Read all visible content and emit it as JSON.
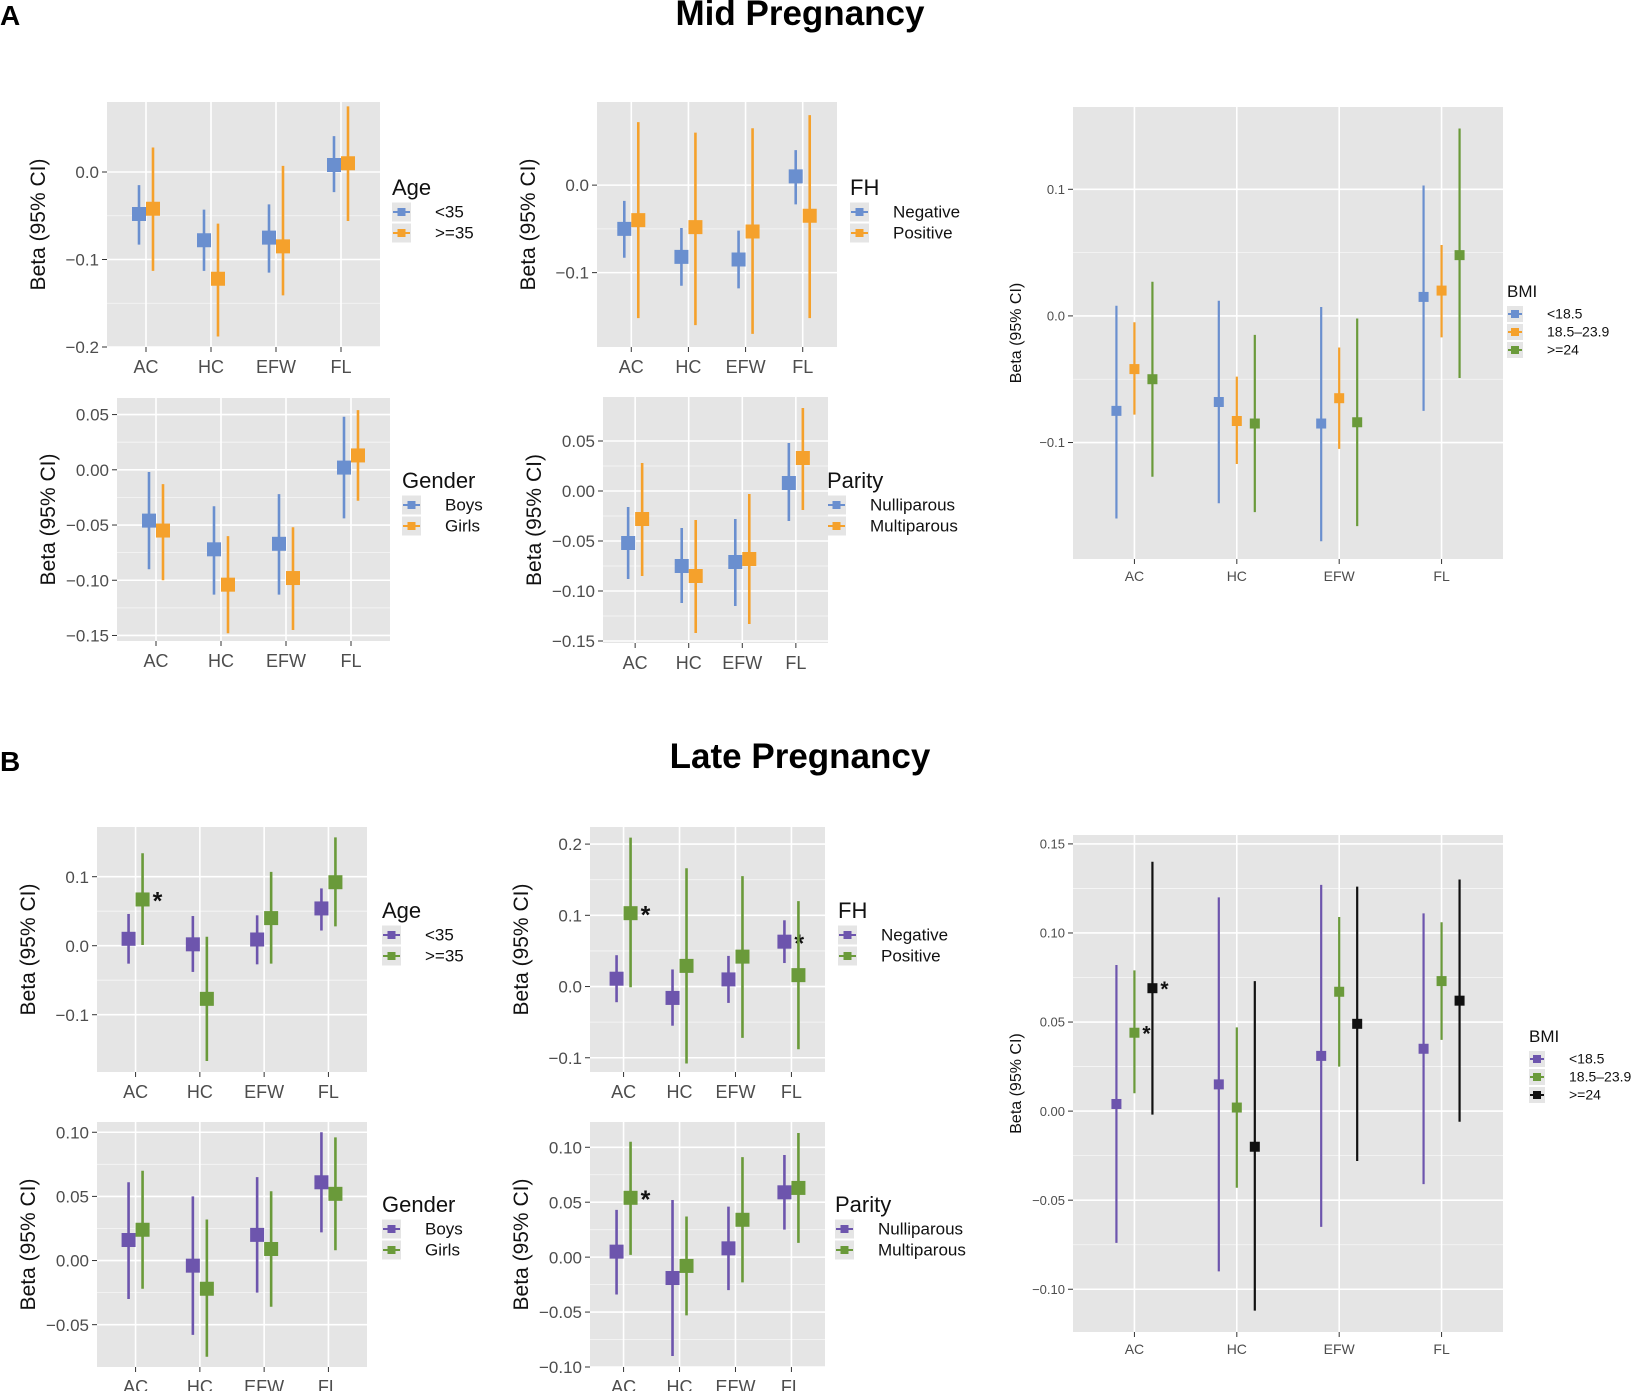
{
  "panel_a": {
    "letter": "A",
    "title": "Mid Pregnancy"
  },
  "panel_b": {
    "letter": "B",
    "title": "Late Pregnancy"
  },
  "colors": {
    "blue": "#6a8fcf",
    "orange": "#f5a12c",
    "green": "#6a9a3a",
    "purple": "#6d55ad",
    "black": "#111111",
    "panel": "#e5e5e5",
    "grid": "#ffffff"
  },
  "chart_data": [
    {
      "id": "mid-age",
      "type": "scatter",
      "title": "",
      "xlabel": "",
      "ylabel": "Beta (95% CI)",
      "categories": [
        "AC",
        "HC",
        "EFW",
        "FL"
      ],
      "ylim": [
        -0.2,
        0.08
      ],
      "yticks": [
        -0.2,
        -0.1,
        0.0
      ],
      "ytick_labels": [
        "−0.2",
        "−0.1",
        "0.0"
      ],
      "legend_title": "Age",
      "series": [
        {
          "name": "<35",
          "color": "#6a8fcf",
          "values": [
            -0.048,
            -0.078,
            -0.075,
            0.008
          ],
          "lower": [
            -0.083,
            -0.113,
            -0.115,
            -0.023
          ],
          "upper": [
            -0.015,
            -0.043,
            -0.037,
            0.041
          ]
        },
        {
          "name": ">=35",
          "color": "#f5a12c",
          "values": [
            -0.042,
            -0.122,
            -0.085,
            0.01
          ],
          "lower": [
            -0.113,
            -0.188,
            -0.141,
            -0.056
          ],
          "upper": [
            0.028,
            -0.059,
            0.007,
            0.075
          ]
        }
      ]
    },
    {
      "id": "mid-fh",
      "type": "scatter",
      "title": "",
      "xlabel": "",
      "ylabel": "Beta (95% CI)",
      "categories": [
        "AC",
        "HC",
        "EFW",
        "FL"
      ],
      "ylim": [
        -0.185,
        0.095
      ],
      "yticks": [
        -0.1,
        0.0
      ],
      "ytick_labels": [
        "−0.1",
        "0.0"
      ],
      "legend_title": "FH",
      "series": [
        {
          "name": "Negative",
          "color": "#6a8fcf",
          "values": [
            -0.05,
            -0.082,
            -0.085,
            0.01
          ],
          "lower": [
            -0.083,
            -0.115,
            -0.118,
            -0.022
          ],
          "upper": [
            -0.018,
            -0.049,
            -0.052,
            0.04
          ]
        },
        {
          "name": "Positive",
          "color": "#f5a12c",
          "values": [
            -0.04,
            -0.048,
            -0.053,
            -0.035
          ],
          "lower": [
            -0.152,
            -0.16,
            -0.17,
            -0.152
          ],
          "upper": [
            0.072,
            0.06,
            0.065,
            0.08
          ]
        }
      ]
    },
    {
      "id": "mid-bmi",
      "type": "scatter",
      "title": "",
      "xlabel": "",
      "ylabel": "Beta (95% CI)",
      "categories": [
        "AC",
        "HC",
        "EFW",
        "FL"
      ],
      "ylim": [
        -0.192,
        0.165
      ],
      "yticks": [
        -0.1,
        0.0,
        0.1
      ],
      "ytick_labels": [
        "−0.1",
        "0.0",
        "0.1"
      ],
      "legend_title": "BMI",
      "series": [
        {
          "name": "<18.5",
          "color": "#6a8fcf",
          "values": [
            -0.075,
            -0.068,
            -0.085,
            0.015
          ],
          "lower": [
            -0.16,
            -0.148,
            -0.178,
            -0.075
          ],
          "upper": [
            0.008,
            0.012,
            0.007,
            0.103
          ]
        },
        {
          "name": "18.5–23.9",
          "color": "#f5a12c",
          "values": [
            -0.042,
            -0.083,
            -0.065,
            0.02
          ],
          "lower": [
            -0.078,
            -0.117,
            -0.105,
            -0.017
          ],
          "upper": [
            -0.005,
            -0.048,
            -0.025,
            0.056
          ]
        },
        {
          "name": ">=24",
          "color": "#6a9a3a",
          "values": [
            -0.05,
            -0.085,
            -0.084,
            0.048
          ],
          "lower": [
            -0.127,
            -0.155,
            -0.166,
            -0.049
          ],
          "upper": [
            0.027,
            -0.015,
            -0.002,
            0.148
          ]
        }
      ]
    },
    {
      "id": "mid-gender",
      "type": "scatter",
      "title": "",
      "xlabel": "",
      "ylabel": "Beta (95% CI)",
      "categories": [
        "AC",
        "HC",
        "EFW",
        "FL"
      ],
      "ylim": [
        -0.155,
        0.065
      ],
      "yticks": [
        -0.15,
        -0.1,
        -0.05,
        0.0,
        0.05
      ],
      "ytick_labels": [
        "−0.15",
        "−0.10",
        "−0.05",
        "0.00",
        "0.05"
      ],
      "legend_title": "Gender",
      "series": [
        {
          "name": "Boys",
          "color": "#6a8fcf",
          "values": [
            -0.046,
            -0.072,
            -0.067,
            0.002
          ],
          "lower": [
            -0.09,
            -0.113,
            -0.113,
            -0.044
          ],
          "upper": [
            -0.002,
            -0.033,
            -0.022,
            0.048
          ]
        },
        {
          "name": "Girls",
          "color": "#f5a12c",
          "values": [
            -0.055,
            -0.104,
            -0.098,
            0.013
          ],
          "lower": [
            -0.1,
            -0.148,
            -0.145,
            -0.028
          ],
          "upper": [
            -0.013,
            -0.06,
            -0.052,
            0.054
          ]
        }
      ]
    },
    {
      "id": "mid-parity",
      "type": "scatter",
      "title": "",
      "xlabel": "",
      "ylabel": "Beta (95% CI)",
      "categories": [
        "AC",
        "HC",
        "EFW",
        "FL"
      ],
      "ylim": [
        -0.152,
        0.094
      ],
      "yticks": [
        -0.15,
        -0.1,
        -0.05,
        0.0,
        0.05
      ],
      "ytick_labels": [
        "−0.15",
        "−0.10",
        "−0.05",
        "0.00",
        "0.05"
      ],
      "legend_title": "Parity",
      "series": [
        {
          "name": "Nulliparous",
          "color": "#6a8fcf",
          "values": [
            -0.052,
            -0.075,
            -0.071,
            0.008
          ],
          "lower": [
            -0.088,
            -0.112,
            -0.115,
            -0.03
          ],
          "upper": [
            -0.016,
            -0.037,
            -0.028,
            0.048
          ]
        },
        {
          "name": "Multiparous",
          "color": "#f5a12c",
          "values": [
            -0.028,
            -0.085,
            -0.068,
            0.033
          ],
          "lower": [
            -0.085,
            -0.142,
            -0.133,
            -0.019
          ],
          "upper": [
            0.028,
            -0.029,
            -0.003,
            0.083
          ]
        }
      ]
    },
    {
      "id": "late-age",
      "type": "scatter",
      "title": "",
      "xlabel": "",
      "ylabel": "Beta (95% CI)",
      "categories": [
        "AC",
        "HC",
        "EFW",
        "FL"
      ],
      "ylim": [
        -0.183,
        0.172
      ],
      "yticks": [
        -0.1,
        0.0,
        0.1
      ],
      "ytick_labels": [
        "−0.1",
        "0.0",
        "0.1"
      ],
      "legend_title": "Age",
      "series": [
        {
          "name": "<35",
          "color": "#6d55ad",
          "values": [
            0.01,
            0.002,
            0.009,
            0.054
          ],
          "lower": [
            -0.026,
            -0.038,
            -0.027,
            0.022
          ],
          "upper": [
            0.046,
            0.043,
            0.044,
            0.083
          ],
          "stars": [
            false,
            false,
            false,
            false
          ]
        },
        {
          "name": ">=35",
          "color": "#6a9a3a",
          "values": [
            0.067,
            -0.077,
            0.04,
            0.092
          ],
          "lower": [
            0.001,
            -0.167,
            -0.026,
            0.028
          ],
          "upper": [
            0.134,
            0.013,
            0.107,
            0.157
          ],
          "stars": [
            true,
            false,
            false,
            false
          ]
        }
      ]
    },
    {
      "id": "late-fh",
      "type": "scatter",
      "title": "",
      "xlabel": "",
      "ylabel": "Beta (95% CI)",
      "categories": [
        "AC",
        "HC",
        "EFW",
        "FL"
      ],
      "ylim": [
        -0.12,
        0.224
      ],
      "yticks": [
        -0.1,
        0.0,
        0.1,
        0.2
      ],
      "ytick_labels": [
        "−0.1",
        "0.0",
        "0.1",
        "0.2"
      ],
      "legend_title": "FH",
      "series": [
        {
          "name": "Negative",
          "color": "#6d55ad",
          "values": [
            0.011,
            -0.016,
            0.01,
            0.063
          ],
          "lower": [
            -0.022,
            -0.055,
            -0.023,
            0.033
          ],
          "upper": [
            0.044,
            0.024,
            0.043,
            0.093
          ],
          "stars": [
            false,
            false,
            false,
            true
          ]
        },
        {
          "name": "Positive",
          "color": "#6a9a3a",
          "values": [
            0.103,
            0.029,
            0.042,
            0.016
          ],
          "lower": [
            -0.001,
            -0.108,
            -0.072,
            -0.088
          ],
          "upper": [
            0.209,
            0.166,
            0.155,
            0.12
          ],
          "stars": [
            true,
            false,
            false,
            false
          ]
        }
      ]
    },
    {
      "id": "late-bmi",
      "type": "scatter",
      "title": "",
      "xlabel": "",
      "ylabel": "Beta (95% CI)",
      "categories": [
        "AC",
        "HC",
        "EFW",
        "FL"
      ],
      "ylim": [
        -0.124,
        0.155
      ],
      "yticks": [
        -0.1,
        -0.05,
        0.0,
        0.05,
        0.1,
        0.15
      ],
      "ytick_labels": [
        "−0.10",
        "−0.05",
        "0.00",
        "0.05",
        "0.10",
        "0.15"
      ],
      "legend_title": "BMI",
      "series": [
        {
          "name": "<18.5",
          "color": "#6d55ad",
          "values": [
            0.004,
            0.015,
            0.031,
            0.035
          ],
          "lower": [
            -0.074,
            -0.09,
            -0.065,
            -0.041
          ],
          "upper": [
            0.082,
            0.12,
            0.127,
            0.111
          ],
          "stars": [
            false,
            false,
            false,
            false
          ]
        },
        {
          "name": "18.5–23.9",
          "color": "#6a9a3a",
          "values": [
            0.044,
            0.002,
            0.067,
            0.073
          ],
          "lower": [
            0.01,
            -0.043,
            0.025,
            0.04
          ],
          "upper": [
            0.079,
            0.047,
            0.109,
            0.106
          ],
          "stars": [
            true,
            false,
            false,
            false
          ]
        },
        {
          "name": ">=24",
          "color": "#111111",
          "values": [
            0.069,
            -0.02,
            0.049,
            0.062
          ],
          "lower": [
            -0.002,
            -0.112,
            -0.028,
            -0.006
          ],
          "upper": [
            0.14,
            0.073,
            0.126,
            0.13
          ],
          "stars": [
            true,
            false,
            false,
            false
          ]
        }
      ]
    },
    {
      "id": "late-gender",
      "type": "scatter",
      "title": "",
      "xlabel": "",
      "ylabel": "Beta (95% CI)",
      "categories": [
        "AC",
        "HC",
        "EFW",
        "FL"
      ],
      "ylim": [
        -0.083,
        0.108
      ],
      "yticks": [
        -0.05,
        0.0,
        0.05,
        0.1
      ],
      "ytick_labels": [
        "−0.05",
        "0.00",
        "0.05",
        "0.10"
      ],
      "legend_title": "Gender",
      "series": [
        {
          "name": "Boys",
          "color": "#6d55ad",
          "values": [
            0.016,
            -0.004,
            0.02,
            0.061
          ],
          "lower": [
            -0.03,
            -0.058,
            -0.025,
            0.022
          ],
          "upper": [
            0.061,
            0.05,
            0.065,
            0.1
          ]
        },
        {
          "name": "Girls",
          "color": "#6a9a3a",
          "values": [
            0.024,
            -0.022,
            0.009,
            0.052
          ],
          "lower": [
            -0.022,
            -0.075,
            -0.036,
            0.008
          ],
          "upper": [
            0.07,
            0.032,
            0.054,
            0.096
          ]
        }
      ]
    },
    {
      "id": "late-parity",
      "type": "scatter",
      "title": "",
      "xlabel": "",
      "ylabel": "Beta (95% CI)",
      "categories": [
        "AC",
        "HC",
        "EFW",
        "FL"
      ],
      "ylim": [
        -0.1,
        0.123
      ],
      "yticks": [
        -0.1,
        -0.05,
        0.0,
        0.05,
        0.1
      ],
      "ytick_labels": [
        "−0.10",
        "−0.05",
        "0.00",
        "0.05",
        "0.10"
      ],
      "legend_title": "Parity",
      "series": [
        {
          "name": "Nulliparous",
          "color": "#6d55ad",
          "values": [
            0.005,
            -0.019,
            0.008,
            0.059
          ],
          "lower": [
            -0.034,
            -0.09,
            -0.03,
            0.025
          ],
          "upper": [
            0.043,
            0.052,
            0.046,
            0.093
          ],
          "stars": [
            false,
            false,
            false,
            false
          ]
        },
        {
          "name": "Multiparous",
          "color": "#6a9a3a",
          "values": [
            0.054,
            -0.008,
            0.034,
            0.063
          ],
          "lower": [
            0.002,
            -0.053,
            -0.023,
            0.013
          ],
          "upper": [
            0.105,
            0.037,
            0.091,
            0.113
          ],
          "stars": [
            true,
            false,
            false,
            false
          ]
        }
      ]
    }
  ]
}
